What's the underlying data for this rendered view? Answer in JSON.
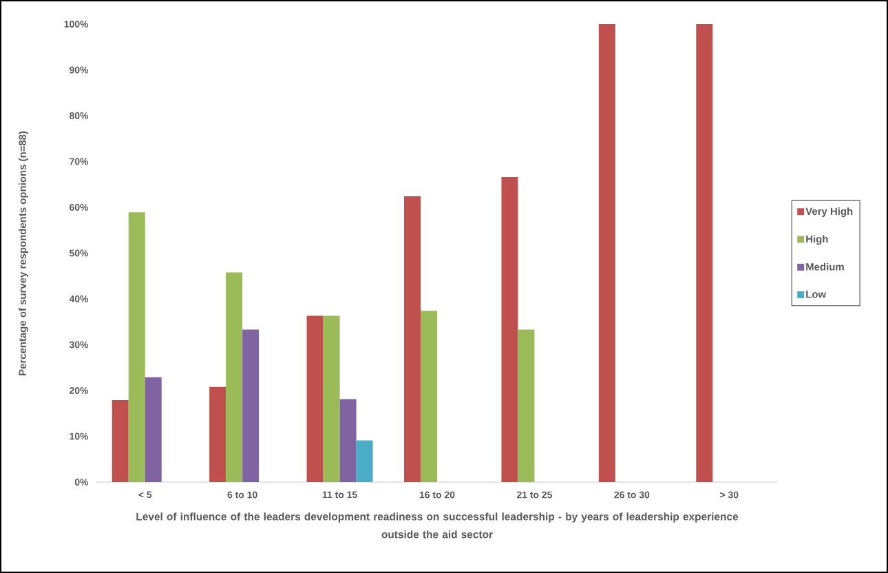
{
  "chart_data": {
    "type": "bar",
    "categories": [
      "< 5",
      "6 to 10",
      "11 to 15",
      "16 to 20",
      "21 to 25",
      "26 to 30",
      "> 30"
    ],
    "series": [
      {
        "name": "Very High",
        "color": "#c0504d",
        "values": [
          17.9,
          20.8,
          36.3,
          62.4,
          66.6,
          100,
          100
        ]
      },
      {
        "name": "High",
        "color": "#9bbb59",
        "values": [
          58.9,
          45.8,
          36.3,
          37.4,
          33.3,
          null,
          null
        ]
      },
      {
        "name": "Medium",
        "color": "#8064a2",
        "values": [
          22.9,
          33.3,
          18.1,
          null,
          null,
          null,
          null
        ]
      },
      {
        "name": "Low",
        "color": "#4bacc6",
        "values": [
          null,
          null,
          9.1,
          null,
          null,
          null,
          null
        ]
      }
    ],
    "ylim": [
      0,
      100
    ],
    "yticks": [
      {
        "value": 0,
        "label": "0%"
      },
      {
        "value": 10,
        "label": "10%"
      },
      {
        "value": 20,
        "label": "20%"
      },
      {
        "value": 30,
        "label": "30%"
      },
      {
        "value": 40,
        "label": "40%"
      },
      {
        "value": 50,
        "label": "50%"
      },
      {
        "value": 60,
        "label": "60%"
      },
      {
        "value": 70,
        "label": "70%"
      },
      {
        "value": 80,
        "label": "80%"
      },
      {
        "value": 90,
        "label": "90%"
      },
      {
        "value": 100,
        "label": "100%"
      }
    ],
    "xlabel": "Level of influence of the leaders development readiness on successful leadership - by years of leadership experience outside the aid sector",
    "ylabel": "Percentage of survey respondents opnions (n=88)",
    "grid": false,
    "legend": "right"
  }
}
